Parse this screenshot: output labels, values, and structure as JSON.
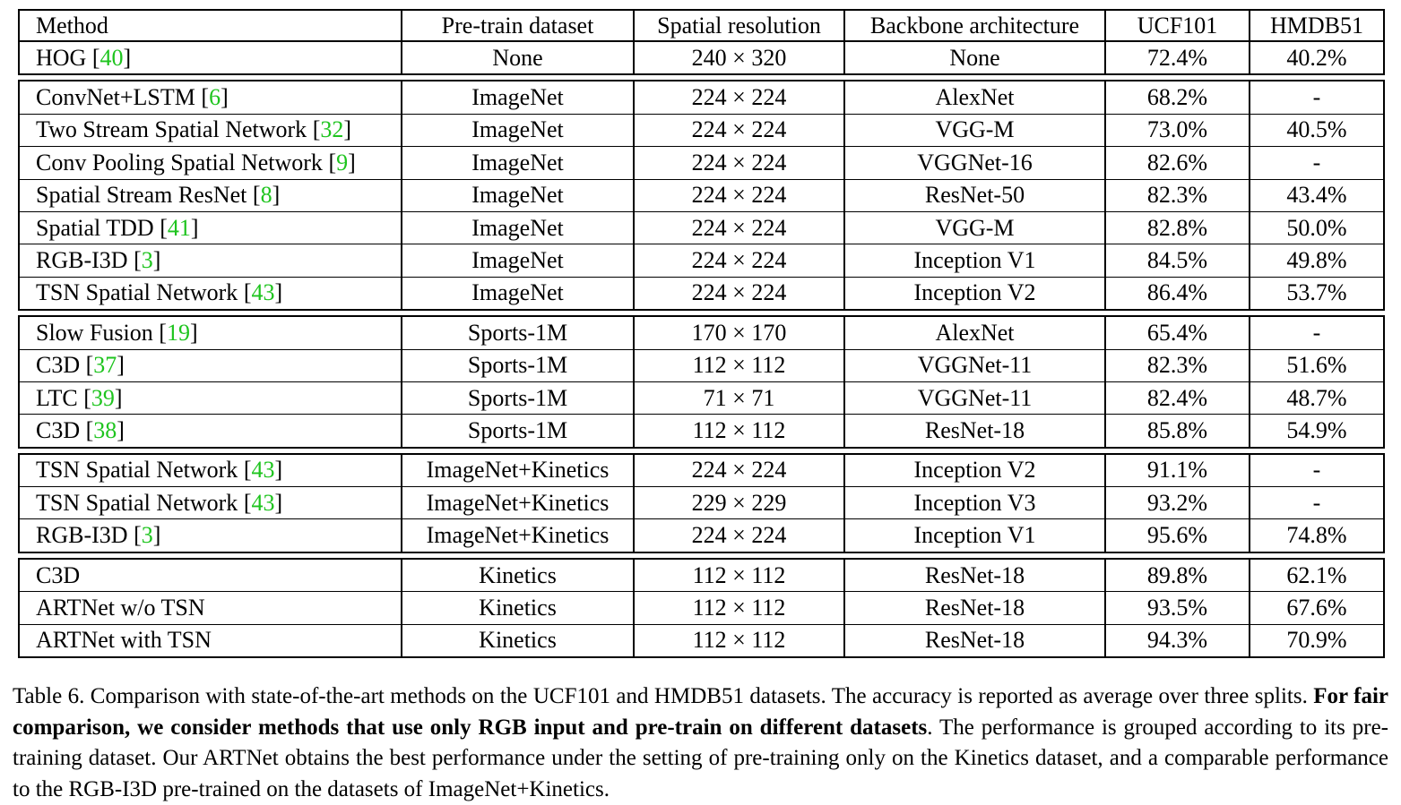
{
  "colors": {
    "reference": "#1ec41e",
    "text": "#000000"
  },
  "table": {
    "headers": [
      "Method",
      "Pre-train dataset",
      "Spatial resolution",
      "Backbone architecture",
      "UCF101",
      "HMDB51"
    ],
    "groups": [
      [
        {
          "method": "HOG",
          "ref": "40",
          "pretrain": "None",
          "resolution": "240 × 320",
          "backbone": "None",
          "ucf": "72.4%",
          "hmdb": "40.2%"
        }
      ],
      [
        {
          "method": "ConvNet+LSTM",
          "ref": "6",
          "pretrain": "ImageNet",
          "resolution": "224 × 224",
          "backbone": "AlexNet",
          "ucf": "68.2%",
          "hmdb": "-"
        },
        {
          "method": "Two Stream Spatial Network",
          "ref": "32",
          "pretrain": "ImageNet",
          "resolution": "224 × 224",
          "backbone": "VGG-M",
          "ucf": "73.0%",
          "hmdb": "40.5%"
        },
        {
          "method": "Conv Pooling Spatial Network",
          "ref": "9",
          "pretrain": "ImageNet",
          "resolution": "224 × 224",
          "backbone": "VGGNet-16",
          "ucf": "82.6%",
          "hmdb": "-"
        },
        {
          "method": "Spatial Stream ResNet",
          "ref": "8",
          "pretrain": "ImageNet",
          "resolution": "224 × 224",
          "backbone": "ResNet-50",
          "ucf": "82.3%",
          "hmdb": "43.4%"
        },
        {
          "method": "Spatial TDD",
          "ref": "41",
          "pretrain": "ImageNet",
          "resolution": "224 × 224",
          "backbone": "VGG-M",
          "ucf": "82.8%",
          "hmdb": "50.0%"
        },
        {
          "method": "RGB-I3D",
          "ref": "3",
          "pretrain": "ImageNet",
          "resolution": "224 × 224",
          "backbone": "Inception V1",
          "ucf": "84.5%",
          "hmdb": "49.8%"
        },
        {
          "method": "TSN Spatial Network",
          "ref": "43",
          "pretrain": "ImageNet",
          "resolution": "224 × 224",
          "backbone": "Inception V2",
          "ucf": "86.4%",
          "hmdb": "53.7%",
          "best": true
        }
      ],
      [
        {
          "method": "Slow Fusion",
          "ref": "19",
          "pretrain": "Sports-1M",
          "resolution": "170 × 170",
          "backbone": "AlexNet",
          "ucf": "65.4%",
          "hmdb": "-"
        },
        {
          "method": "C3D",
          "ref": "37",
          "pretrain": "Sports-1M",
          "resolution": "112 × 112",
          "backbone": "VGGNet-11",
          "ucf": "82.3%",
          "hmdb": "51.6%"
        },
        {
          "method": "LTC",
          "ref": "39",
          "pretrain": "Sports-1M",
          "resolution": "71 × 71",
          "backbone": "VGGNet-11",
          "ucf": "82.4%",
          "hmdb": "48.7%"
        },
        {
          "method": "C3D",
          "ref": "38",
          "pretrain": "Sports-1M",
          "resolution": "112 × 112",
          "backbone": "ResNet-18",
          "ucf": "85.8%",
          "hmdb": "54.9%",
          "best": true
        }
      ],
      [
        {
          "method": "TSN Spatial Network",
          "ref": "43",
          "pretrain": "ImageNet+Kinetics",
          "resolution": "224 × 224",
          "backbone": "Inception V2",
          "ucf": "91.1%",
          "hmdb": "-"
        },
        {
          "method": "TSN Spatial Network",
          "ref": "43",
          "pretrain": "ImageNet+Kinetics",
          "resolution": "229 × 229",
          "backbone": "Inception V3",
          "ucf": "93.2%",
          "hmdb": "-"
        },
        {
          "method": "RGB-I3D",
          "ref": "3",
          "pretrain": "ImageNet+Kinetics",
          "resolution": "224 × 224",
          "backbone": "Inception V1",
          "ucf": "95.6%",
          "hmdb": "74.8%",
          "best": true
        }
      ],
      [
        {
          "method": "C3D",
          "ref": "",
          "pretrain": "Kinetics",
          "resolution": "112 × 112",
          "backbone": "ResNet-18",
          "ucf": "89.8%",
          "hmdb": "62.1%"
        },
        {
          "method": "ARTNet w/o TSN",
          "ref": "",
          "pretrain": "Kinetics",
          "resolution": "112 × 112",
          "backbone": "ResNet-18",
          "ucf": "93.5%",
          "hmdb": "67.6%"
        },
        {
          "method": "ARTNet with TSN",
          "ref": "",
          "pretrain": "Kinetics",
          "resolution": "112 × 112",
          "backbone": "ResNet-18",
          "ucf": "94.3%",
          "hmdb": "70.9%",
          "best": true
        }
      ]
    ]
  },
  "caption": {
    "part1": "Table 6. Comparison with state-of-the-art methods on the UCF101 and HMDB51 datasets. The accuracy is reported as average over three splits. ",
    "bold": "For fair comparison, we consider methods that use only RGB input and pre-train on different datasets",
    "part2": ". The performance is grouped according to its pre-training dataset. Our ARTNet obtains the best performance under the setting of pre-training only on the Kinetics dataset, and a comparable performance to the RGB-I3D pre-trained on the datasets of ImageNet+Kinetics."
  }
}
